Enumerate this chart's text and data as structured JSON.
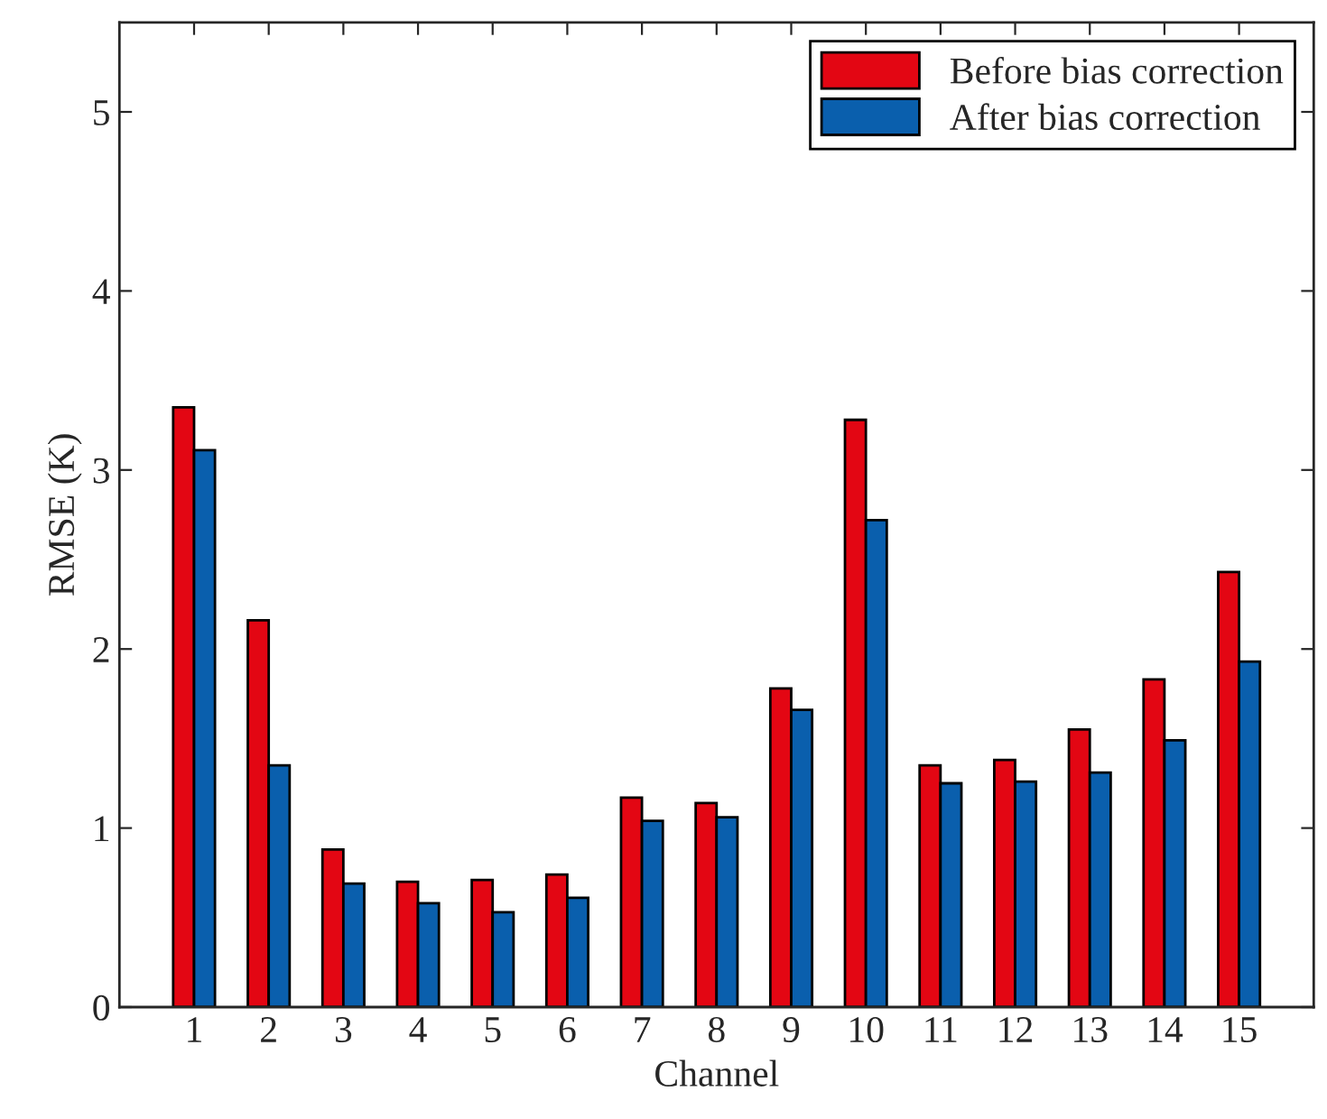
{
  "chart_data": {
    "type": "bar",
    "xlabel": "Channel",
    "ylabel": "RMSE (K)",
    "categories": [
      "1",
      "2",
      "3",
      "4",
      "5",
      "6",
      "7",
      "8",
      "9",
      "10",
      "11",
      "12",
      "13",
      "14",
      "15"
    ],
    "series": [
      {
        "name": "Before bias correction",
        "color": "#e30613",
        "values": [
          3.35,
          2.16,
          0.88,
          0.7,
          0.71,
          0.74,
          1.17,
          1.14,
          1.78,
          3.28,
          1.35,
          1.38,
          1.55,
          1.83,
          2.43
        ]
      },
      {
        "name": "After bias correction",
        "color": "#0a5fad",
        "values": [
          3.11,
          1.35,
          0.69,
          0.58,
          0.53,
          0.61,
          1.04,
          1.06,
          1.66,
          2.72,
          1.25,
          1.26,
          1.31,
          1.49,
          1.93
        ]
      }
    ],
    "ylim": [
      0,
      5.5
    ],
    "yticks": [
      0,
      1,
      2,
      3,
      4,
      5
    ],
    "grid": false,
    "legend": "top right"
  }
}
